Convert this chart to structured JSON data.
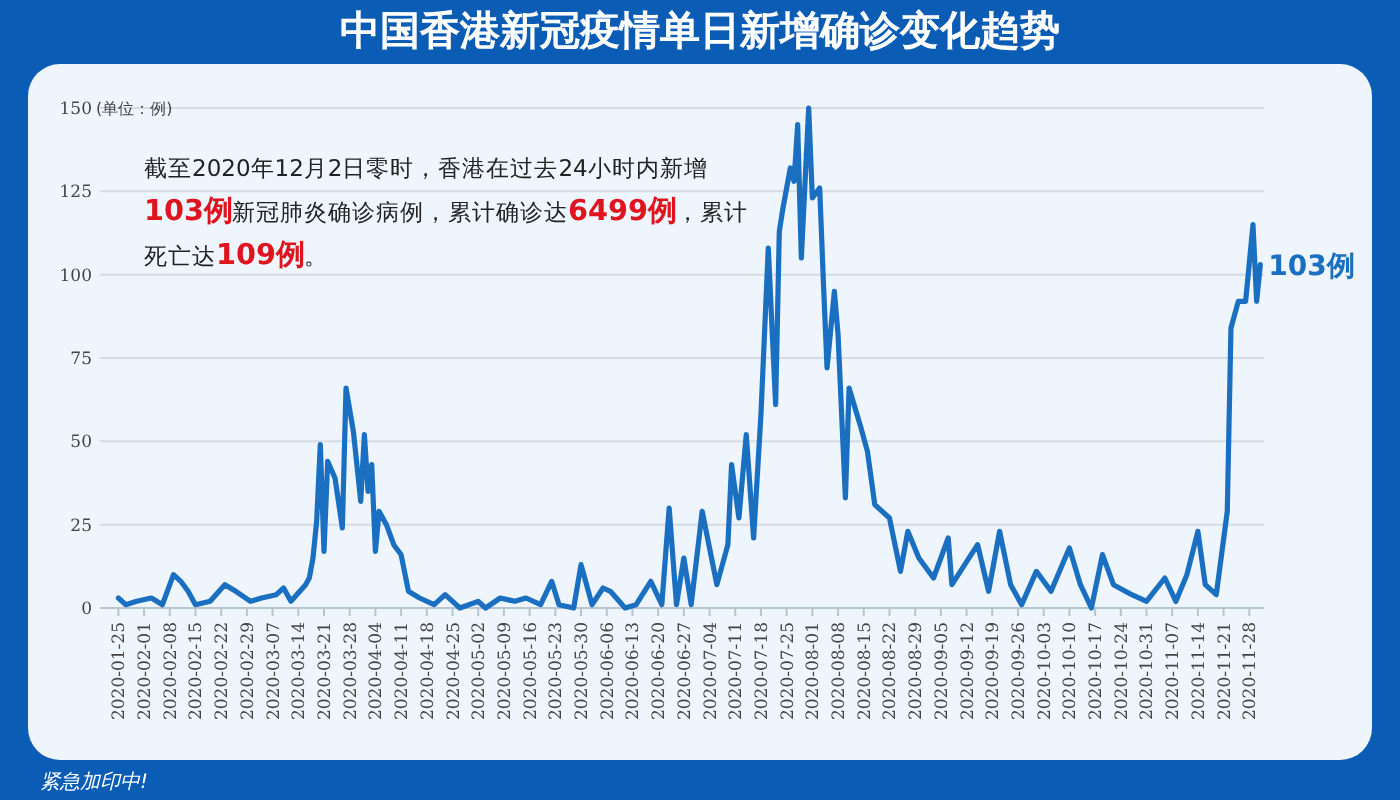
{
  "chart_data": {
    "type": "line",
    "title": "中国香港新冠疫情单日新增确诊变化趋势",
    "ylabel": "(单位：例)",
    "annotations": [
      "截至2020年12月2日零时，香港在过去24小时内新增103例新冠肺炎确诊病例，累计确诊达6499例，累计死亡达109例。",
      {
        "text": "103例",
        "x": "2020-12-01",
        "y": 103
      },
      "紧急加印中!"
    ],
    "xlim": [
      "2020-01-20",
      "2020-12-02"
    ],
    "xticks": [
      "2020-01-25",
      "2020-02-01",
      "2020-02-08",
      "2020-02-15",
      "2020-02-22",
      "2020-02-29",
      "2020-03-07",
      "2020-03-14",
      "2020-03-21",
      "2020-03-28",
      "2020-04-04",
      "2020-04-11",
      "2020-04-18",
      "2020-04-25",
      "2020-05-02",
      "2020-05-09",
      "2020-05-16",
      "2020-05-23",
      "2020-05-30",
      "2020-06-06",
      "2020-06-13",
      "2020-06-20",
      "2020-06-27",
      "2020-07-04",
      "2020-07-11",
      "2020-07-18",
      "2020-07-25",
      "2020-08-01",
      "2020-08-08",
      "2020-08-15",
      "2020-08-22",
      "2020-08-29",
      "2020-09-05",
      "2020-09-12",
      "2020-09-19",
      "2020-09-26",
      "2020-10-03",
      "2020-10-10",
      "2020-10-17",
      "2020-10-24",
      "2020-10-31",
      "2020-11-07",
      "2020-11-14",
      "2020-11-21",
      "2020-11-28"
    ],
    "ylim": [
      0,
      150
    ],
    "yticks": [
      0,
      25,
      50,
      75,
      100,
      125,
      150
    ],
    "grid": "y",
    "marker": "none",
    "line_style": "solid",
    "series": [
      {
        "color": "#1a6fc0",
        "x": [
          "2020-01-25",
          "2020-01-27",
          "2020-01-30",
          "2020-02-03",
          "2020-02-06",
          "2020-02-09",
          "2020-02-11",
          "2020-02-13",
          "2020-02-15",
          "2020-02-19",
          "2020-02-23",
          "2020-02-26",
          "2020-03-01",
          "2020-03-04",
          "2020-03-08",
          "2020-03-10",
          "2020-03-12",
          "2020-03-16",
          "2020-03-17",
          "2020-03-18",
          "2020-03-19",
          "2020-03-20",
          "2020-03-21",
          "2020-03-22",
          "2020-03-24",
          "2020-03-26",
          "2020-03-27",
          "2020-03-29",
          "2020-03-31",
          "2020-04-01",
          "2020-04-02",
          "2020-04-03",
          "2020-04-04",
          "2020-04-05",
          "2020-04-07",
          "2020-04-09",
          "2020-04-11",
          "2020-04-13",
          "2020-04-16",
          "2020-04-20",
          "2020-04-23",
          "2020-04-27",
          "2020-05-02",
          "2020-05-04",
          "2020-05-08",
          "2020-05-12",
          "2020-05-15",
          "2020-05-19",
          "2020-05-22",
          "2020-05-24",
          "2020-05-28",
          "2020-05-30",
          "2020-06-02",
          "2020-06-05",
          "2020-06-07",
          "2020-06-11",
          "2020-06-14",
          "2020-06-18",
          "2020-06-21",
          "2020-06-23",
          "2020-06-25",
          "2020-06-27",
          "2020-06-29",
          "2020-07-02",
          "2020-07-06",
          "2020-07-09",
          "2020-07-10",
          "2020-07-12",
          "2020-07-14",
          "2020-07-16",
          "2020-07-18",
          "2020-07-20",
          "2020-07-22",
          "2020-07-23",
          "2020-07-24",
          "2020-07-26",
          "2020-07-27",
          "2020-07-28",
          "2020-07-29",
          "2020-07-31",
          "2020-08-01",
          "2020-08-03",
          "2020-08-04",
          "2020-08-05",
          "2020-08-07",
          "2020-08-08",
          "2020-08-10",
          "2020-08-11",
          "2020-08-14",
          "2020-08-16",
          "2020-08-18",
          "2020-08-22",
          "2020-08-25",
          "2020-08-27",
          "2020-08-30",
          "2020-09-03",
          "2020-09-07",
          "2020-09-08",
          "2020-09-15",
          "2020-09-18",
          "2020-09-21",
          "2020-09-24",
          "2020-09-27",
          "2020-10-01",
          "2020-10-05",
          "2020-10-10",
          "2020-10-13",
          "2020-10-16",
          "2020-10-19",
          "2020-10-22",
          "2020-10-27",
          "2020-10-31",
          "2020-11-05",
          "2020-11-08",
          "2020-11-11",
          "2020-11-14",
          "2020-11-16",
          "2020-11-19",
          "2020-11-22",
          "2020-11-23",
          "2020-11-25",
          "2020-11-27",
          "2020-11-29",
          "2020-11-30",
          "2020-12-01"
        ],
        "values": [
          3,
          1,
          2,
          3,
          1,
          10,
          8,
          5,
          1,
          2,
          7,
          5,
          2,
          3,
          4,
          6,
          2,
          7,
          9,
          15,
          26,
          49,
          17,
          44,
          39,
          24,
          66,
          53,
          32,
          52,
          35,
          43,
          17,
          29,
          25,
          19,
          16,
          5,
          3,
          1,
          4,
          0,
          2,
          0,
          3,
          2,
          3,
          1,
          8,
          1,
          0,
          13,
          1,
          6,
          5,
          0,
          1,
          8,
          1,
          30,
          1,
          15,
          1,
          29,
          7,
          19,
          43,
          27,
          52,
          21,
          58,
          108,
          61,
          113,
          120,
          132,
          128,
          145,
          105,
          150,
          123,
          126,
          98,
          72,
          95,
          82,
          33,
          66,
          55,
          47,
          31,
          27,
          11,
          23,
          15,
          9,
          21,
          7,
          19,
          5,
          23,
          7,
          1,
          11,
          5,
          18,
          7,
          0,
          16,
          7,
          4,
          2,
          9,
          2,
          10,
          23,
          7,
          4,
          29,
          84,
          92,
          92,
          115,
          92,
          103
        ]
      }
    ]
  }
}
